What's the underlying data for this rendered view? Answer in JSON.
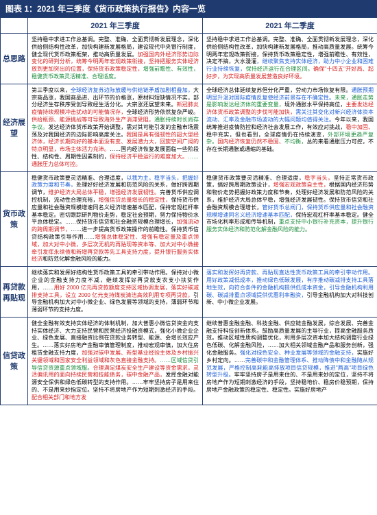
{
  "title": "图表 1：2021 年三季度《货币政策执行报告》内容一览",
  "headers": {
    "col1": "2021 年三季度",
    "col2": "2021 年二季度"
  },
  "rows": [
    {
      "label": "总思路",
      "q3": [
        {
          "t": "坚持稳中求进工作总基调。完整、准确、全面贯彻新发展理念，深化供给侧结构性改革，加快构建新发展格局，建设现代中央银行制度，健全现代货币政策框架，推动高质量发展。"
        },
        {
          "t": "加强国内外经济形势边际变化的研判分析，统筹今明两年宏观政策衔接，坚持把服务实体经济放到更加突出的位置，保持货币政策稳定性，",
          "c": "red"
        },
        {
          "t": "增强前瞻性、有效性，稳健货币政策灵活精准、合理适度。",
          "c": "green"
        }
      ],
      "q2": [
        {
          "t": "坚持稳中求进工作总基调。完整、准确、全面贯彻新发展理念，深化供给侧结构性改革，加快构建新发展格局，推动高质量发展。统筹今明两年宏观政策衔接，保持货币政策稳定性，增强前瞻性、有效性，决定不搞，大水漫灌"
        },
        {
          "t": "，继续聚焦支持实体经济，助力中小企业和困难行业持续恢复，",
          "c": "blue"
        },
        {
          "t": "保持经济运行在合理区间。",
          "c": "green"
        },
        {
          "t": "确保\"十四五\"开好局、起好步，为实现高质量发展营造良好环境。",
          "c": "red"
        }
      ]
    },
    {
      "label": "经济展望",
      "q3": [
        {
          "t": "第三季度以来，"
        },
        {
          "t": "全球经济复苏边际放缓与供给链矛盾加剧相叠加，",
          "c": "blue"
        },
        {
          "t": "大宗商品涨，我国商品进、出环节的价格涨，原材料短缺情况不实，部分经济生存秩序受创导致经生活分化。大宗涨还展望未来。"
        },
        {
          "t": "新冠肺炎疫情持续规模冲击扰动的可能情况存，",
          "c": "red"
        },
        {
          "t": "全球经济形势依然复杂严峻。"
        },
        {
          "t": "供给瓶颈、能源挑战等可导致海外生产消滞受阻，",
          "c": "red"
        },
        {
          "t": "通胀持续时长尚存争议。",
          "c": "green"
        },
        {
          "t": "发达经济体货币政策开始调整，需对其可能引发的金融市场震荡及对我国经济的边际影响高度关注。"
        },
        {
          "t": "我国是具有强韧性的超大型经济体，经济长期向好的基本面没有变、发展潜力大，回旋空间广阔的特点明显，市场主体活力充沛。",
          "c": "red"
        },
        {
          "t": "……国内经济恢复发展面临一些阶段性、结构性、周期性因素制约，"
        },
        {
          "t": "保持经济平稳运行的难度加大。",
          "c": "red"
        },
        {
          "t": "……",
          "c": "green"
        },
        {
          "t": "通胀压力总体可控。",
          "c": "red"
        }
      ],
      "q2": [
        {
          "t": "全球经济总体延续复苏但分化严重，劳动力市场恢复有限。"
        },
        {
          "t": "通胀预期明显升温对国际疫情反复使经济前景存在不确定性。",
          "c": "blue"
        },
        {
          "t": "未来，通胀走势是影响发达经济体的重要变量，",
          "c": "green"
        },
        {
          "t": "境外通胀水平保持高位，"
        },
        {
          "t": "主要发达经济体货币政策调整的步伐可能加快，",
          "c": "red"
        },
        {
          "t": "需关注其变化对新兴经济体资本流动、汇率及金融市场波动的大幅问题均值得关注。",
          "c": "blue"
        },
        {
          "t": "今年以来，我国统筹推进疫情防控和经济社会发展工作，有效应对挑战，"
        },
        {
          "t": "稳中加固、",
          "c": "red"
        },
        {
          "t": "稳中充实，但也看到，全球疫情仍在持续演变，"
        },
        {
          "t": "外部环境更趋严复杂。",
          "c": "green"
        },
        {
          "t": "国内经济恢复仍然不稳固、",
          "c": "red"
        },
        {
          "t": "不均衡，",
          "c": "green"
        },
        {
          "t": "总的来看通胀压力可控，不存在长期通胀或通缩的基础。"
        }
      ]
    },
    {
      "label": "货币政策",
      "q3": [
        {
          "t": "稳健货币政策要灵活精准、合理适度，"
        },
        {
          "t": "以我为主，稳字当头，把握好政策力度和节奏，",
          "c": "blue"
        },
        {
          "t": "处理好好经济发展和防范风险的关系，做好跨周期调节，"
        },
        {
          "t": "维护经济大局总体平稳，增强经济发展韧性。",
          "c": "red"
        },
        {
          "t": "完善货币供应调控机制，流动性合理充裕，"
        },
        {
          "t": "增强信贷总量增长的稳定性，",
          "c": "red"
        },
        {
          "t": "保持货币供应量和社会融资规模增速同名义经济增速基本匹配，保持宏观杠杆率基本稳定。密切跟踪研判物价走势，稳定社会预期，努力保持物价水平总体稳定。……保持货币信贷和社会融资规模合理增长，"
        },
        {
          "t": "加强流动的跨周期调节，",
          "c": "red"
        },
        {
          "t": "……进一步提高货币政策操作的前瞻性。保持货币信贷结构政策引导作用……"
        },
        {
          "t": "增强总体稳定性、增强有稳定量及重点领域，加大对中小微，多层次无机的再贴现等资本等、加大对中小微接牵引发挥永续债和新增再贷款等先工具支持力度，提升银行服务实体经济",
          "c": "red"
        },
        {
          "t": "和防范化解金融风险的能力。"
        }
      ],
      "q2": [
        {
          "t": "稳健货币政策要灵活精准、合理适度，"
        },
        {
          "t": "稳字当头，",
          "c": "red"
        },
        {
          "t": "坚持正常货币政策，搞好跨周期政策设计，"
        },
        {
          "t": "增强宏观政策自主性，",
          "c": "red"
        },
        {
          "t": "根据国内经济形势和物价走势把握好政策力度和节奏，处理好经济发展和防范风险的关系，维护经济大局总体平稳，增强经济发展韧性。"
        },
        {
          "t": "保持货币信贷和社会融资规模合理增长，"
        },
        {
          "t": "管好货币总闸门，保持货币供应量和社会融资规模增速同名义经济增速基本匹配，",
          "c": "blue"
        },
        {
          "t": "保持宏观杠杆率基本稳定。健全市场化利率形成和传导机制，"
        },
        {
          "t": "重点支持中小银行补充资本，提升银行服务实体经济和防范化解金融风险的能力。",
          "c": "green"
        }
      ]
    },
    {
      "label": "再贷款再贴现",
      "q3": [
        {
          "t": "继续落实和发挥好结构性货币政策工具的牵引带动作用。保持对小微企业的金融支持力度不减，继续发挥好再贷款支农支小扶贫作用，……"
        },
        {
          "t": "用好 2000 亿元再贷款额度支持区域协调发展，落实好碳减排支持工具，设立 2000 亿元支持煤炭清洁高效利用专项再贷款，",
          "c": "red"
        },
        {
          "t": "引导金融机构加大对中小微企业、绿色发展等领域的支持，薄弱环节和薄弱环节的支持力度。"
        }
      ],
      "q2": [
        {
          "t": "落实和发挥好再贷款、再贴现直达性货币政策工具的牵引带动作用。用好政策减低成本，推动绿色低碳发展，有序推动碳减排支持工具落地生效，向符合条件的金融机构提供低成本资金，引导金融机构利用碳、碳减排重点领域提供优惠利率融资，",
          "c": "blue"
        },
        {
          "t": "引导金融机构加大对科技创新、中小微企业发展。"
        }
      ]
    },
    {
      "label": "信贷政策",
      "q3": [
        {
          "t": "健全金融有效支持实体经济的体制机制，加大普惠小微信贷资金向支持实体经济、大力支持民营和民营经济投融资模式，强化小微企业企业、绿色发展、直接融资比例在贷款业务转型、能源、会增长效应产生。……落实好房地产金融审慎管理制度，推动宏观审慎，加大住房租赁金融支持力度，"
        },
        {
          "t": "加强对碳中发展、新型基业经验主体及乡村振兴关键领域和国家安全利益领域和灰色直接金融支持。",
          "c": "red"
        },
        {
          "t": "……区域信贷引导信贷资源重点领域服。",
          "c": "green"
        },
        {
          "t": "合理满足煤炭安全生产建设等资金需求，灵活偏讯用的面向持续民营和技能债务，碳中金融产品，",
          "c": "red"
        },
        {
          "t": "发挥金融对能源安全保供和绿色低碳转型的支持作用。……牢牢坚持房子是用来住的、不是用来妙指定位。坚持不将房地产作为短期刺激经济的手段。"
        },
        {
          "t": "配合相关部门和地方发",
          "c": "red"
        }
      ],
      "q2": [
        {
          "t": "继续普惠金融金融、科技金融、供应链金融发展，综合发展、完善金融支持科技创新体系。鼓励高质量发展的主导行业，提高金融服务质效。推动区域性质构调整优化，利用多层次资本加大结构调整行业绿色低碳、化解金融风险，……加大相关领域金融产品和服务创新，强化金融服务。"
        },
        {
          "t": "强化对绿色安全、种业发展等领域的金融支持，",
          "c": "blue"
        },
        {
          "t": "实施好乡村定向。……"
        },
        {
          "t": "完善碳中和金融管理体系、推动降债中和金融随从规范发展，严格控制高耗能高排放项目信贷规模，推进\"两高\"项目绿色转型升级。",
          "c": "blue"
        },
        {
          "t": "牢牢坚持房子是用来住的、不是用来妙的定位，坚持不将房地产作为短期刺激经济的手段，坚持稳地价、稳房价稳预期，保持房地产金融政策的稳定性、稳定性。实施好房地产"
        }
      ]
    }
  ]
}
